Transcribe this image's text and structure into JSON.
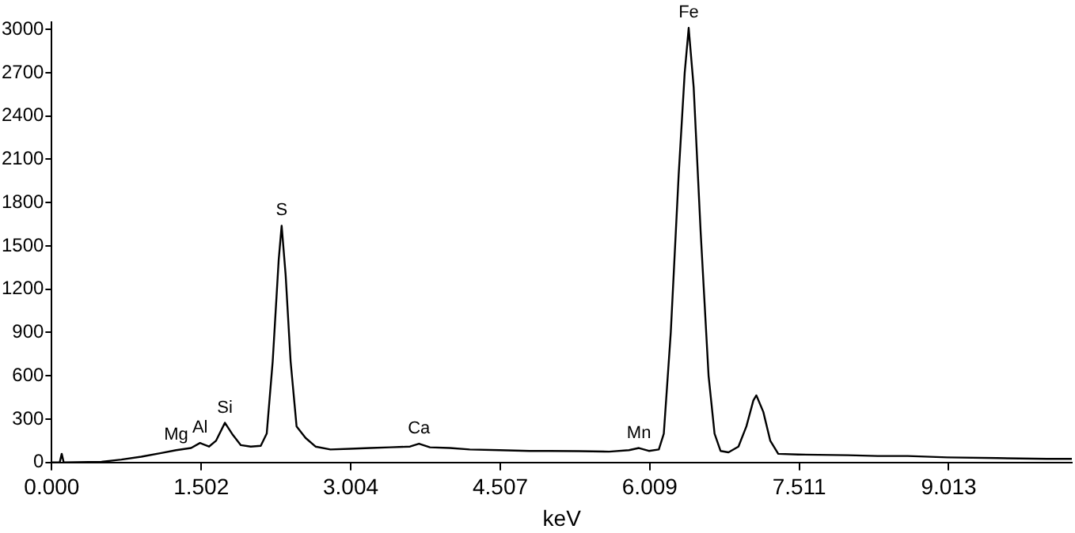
{
  "chart_data": {
    "type": "line",
    "xlabel": "keV",
    "xlim": [
      0,
      10.25
    ],
    "xticks": [
      {
        "value": 0,
        "label": "0.000"
      },
      1.502,
      3.004,
      4.507,
      6.009,
      7.511,
      9.013
    ],
    "ylim": [
      0,
      3050
    ],
    "yticks": [
      0,
      300,
      600,
      900,
      1200,
      1500,
      1800,
      2100,
      2400,
      2700,
      3000
    ],
    "grid": false,
    "legend": false,
    "marker": "none",
    "line_style": "solid",
    "series": [
      {
        "color": "#000000",
        "x": [
          0,
          0.08,
          0.1,
          0.12,
          0.5,
          0.7,
          0.9,
          1.1,
          1.25,
          1.4,
          1.49,
          1.58,
          1.65,
          1.74,
          1.82,
          1.9,
          2.0,
          2.1,
          2.16,
          2.22,
          2.28,
          2.31,
          2.35,
          2.4,
          2.46,
          2.55,
          2.65,
          2.8,
          3.0,
          3.2,
          3.4,
          3.6,
          3.69,
          3.8,
          4.0,
          4.2,
          4.5,
          4.8,
          5.0,
          5.3,
          5.6,
          5.8,
          5.9,
          6.0,
          6.1,
          6.15,
          6.22,
          6.3,
          6.36,
          6.4,
          6.45,
          6.52,
          6.6,
          6.66,
          6.72,
          6.8,
          6.9,
          6.98,
          7.05,
          7.08,
          7.15,
          7.22,
          7.3,
          7.5,
          8.0,
          8.3,
          8.6,
          9.0,
          9.5,
          10.0,
          10.25
        ],
        "values": [
          0,
          0,
          60,
          0,
          5,
          20,
          40,
          65,
          85,
          100,
          135,
          110,
          150,
          275,
          190,
          120,
          110,
          115,
          200,
          700,
          1400,
          1640,
          1300,
          700,
          250,
          170,
          110,
          90,
          95,
          100,
          105,
          110,
          130,
          105,
          100,
          90,
          85,
          80,
          80,
          78,
          75,
          85,
          100,
          80,
          90,
          200,
          900,
          2000,
          2700,
          3010,
          2600,
          1600,
          600,
          200,
          80,
          70,
          110,
          250,
          430,
          465,
          350,
          150,
          60,
          55,
          50,
          45,
          45,
          35,
          30,
          25,
          25
        ]
      }
    ],
    "annotations": [
      {
        "text": "Mg",
        "x": 1.25,
        "y": 85
      },
      {
        "text": "Al",
        "x": 1.49,
        "y": 135
      },
      {
        "text": "Si",
        "x": 1.74,
        "y": 275
      },
      {
        "text": "S",
        "x": 2.31,
        "y": 1640
      },
      {
        "text": "Ca",
        "x": 3.69,
        "y": 130
      },
      {
        "text": "Mn",
        "x": 5.9,
        "y": 100
      },
      {
        "text": "Fe",
        "x": 6.4,
        "y": 3010
      }
    ]
  }
}
